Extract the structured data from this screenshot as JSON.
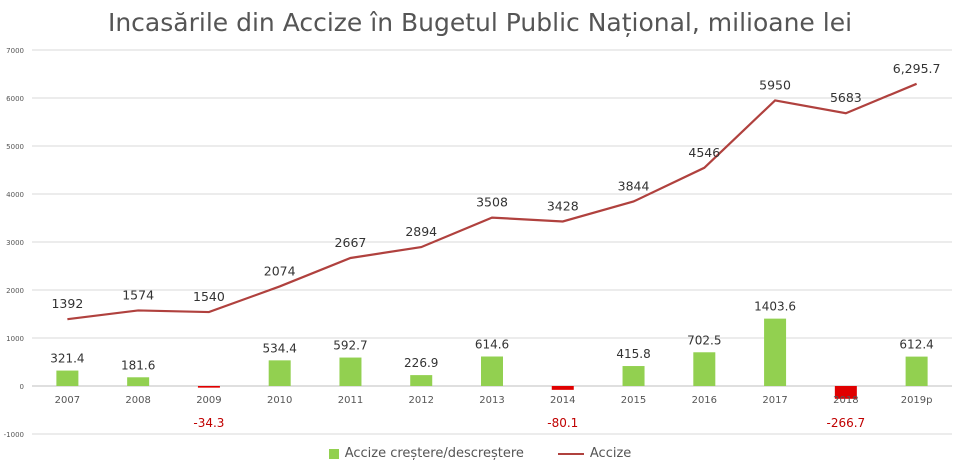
{
  "chart_data": {
    "type": "bar+line",
    "title": "Incasările din Accize în Bugetul Public Național, milioane lei",
    "categories": [
      "2007",
      "2008",
      "2009",
      "2010",
      "2011",
      "2012",
      "2013",
      "2014",
      "2015",
      "2016",
      "2017",
      "2018",
      "2019p"
    ],
    "series": [
      {
        "name": "Accize creștere/descreștere",
        "type": "bar",
        "values": [
          321.4,
          181.6,
          -34.3,
          534.4,
          592.7,
          226.9,
          614.6,
          -80.1,
          415.8,
          702.5,
          1403.6,
          -266.7,
          612.4
        ],
        "labels": [
          "321.4",
          "181.6",
          "-34.3",
          "534.4",
          "592.7",
          "226.9",
          "614.6",
          "-80.1",
          "415.8",
          "702.5",
          "1403.6",
          "-266.7",
          "612.4"
        ]
      },
      {
        "name": "Accize",
        "type": "line",
        "values": [
          1392,
          1574,
          1540,
          2074,
          2667,
          2894,
          3508,
          3428,
          3844,
          4546,
          5950,
          5683,
          6295.7
        ],
        "labels": [
          "1392",
          "1574",
          "1540",
          "2074",
          "2667",
          "2894",
          "3508",
          "3428",
          "3844",
          "4546",
          "5950",
          "5683",
          "6,295.7"
        ]
      }
    ],
    "ylim": [
      -1000,
      7000
    ],
    "yticks": [
      -1000,
      0,
      1000,
      2000,
      3000,
      4000,
      5000,
      6000,
      7000
    ],
    "grid": "horizontal",
    "legend": "bottom",
    "colors": {
      "bar_positive": "#92d050",
      "bar_negative": "#e00000",
      "line": "#b0413e",
      "negative_label": "#c00000",
      "grid": "#d9d9d9",
      "text": "#555555",
      "label": "#333333"
    }
  }
}
